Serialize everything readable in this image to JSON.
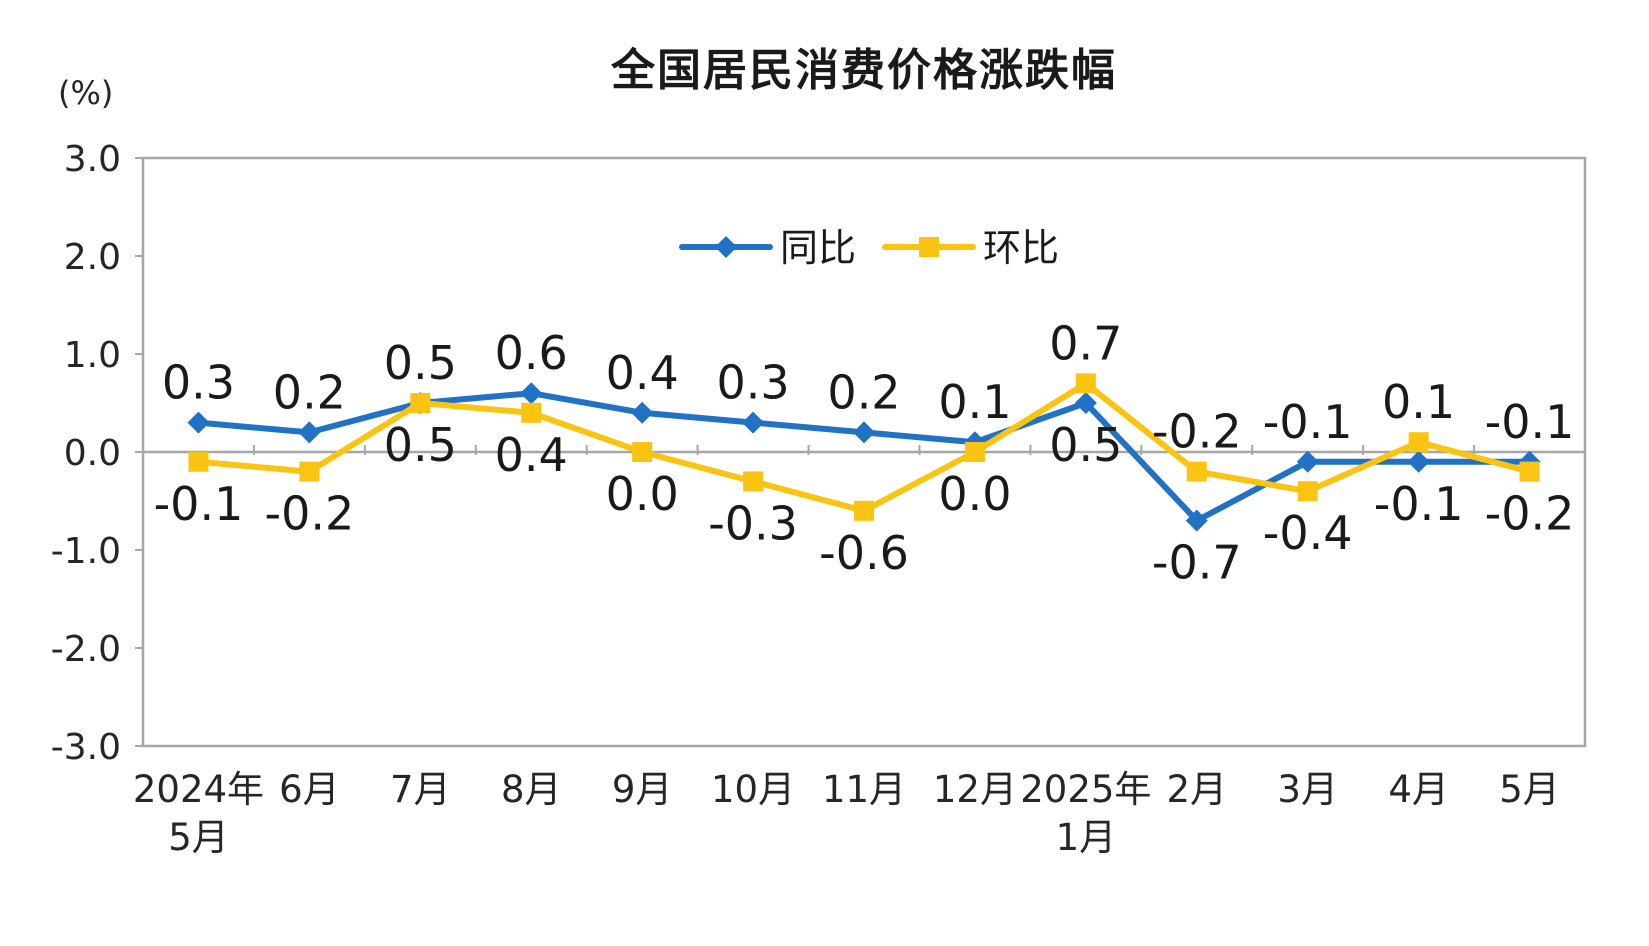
{
  "chart_data": {
    "type": "line",
    "title": "全国居民消费价格涨跌幅",
    "unit_label": "(%)",
    "categories": [
      [
        "2024年",
        "5月"
      ],
      [
        "6月"
      ],
      [
        "7月"
      ],
      [
        "8月"
      ],
      [
        "9月"
      ],
      [
        "10月"
      ],
      [
        "11月"
      ],
      [
        "12月"
      ],
      [
        "2025年",
        "1月"
      ],
      [
        "2月"
      ],
      [
        "3月"
      ],
      [
        "4月"
      ],
      [
        "5月"
      ]
    ],
    "series": [
      {
        "name": "同比",
        "color": "#2171C4",
        "marker": "diamond",
        "values": [
          0.3,
          0.2,
          0.5,
          0.6,
          0.4,
          0.3,
          0.2,
          0.1,
          0.5,
          -0.7,
          -0.1,
          -0.1,
          -0.1
        ]
      },
      {
        "name": "环比",
        "color": "#FBC412",
        "marker": "square",
        "values": [
          -0.1,
          -0.2,
          0.5,
          0.4,
          0.0,
          -0.3,
          -0.6,
          0.0,
          0.7,
          -0.2,
          -0.4,
          0.1,
          -0.2
        ]
      }
    ],
    "ylim": [
      -3.0,
      3.0
    ],
    "ytick_labels": [
      "3.0",
      "2.0",
      "1.0",
      "0.0",
      "-1.0",
      "-2.0",
      "-3.0"
    ],
    "data_labels": true,
    "grid": false,
    "legend": {
      "position": "top-center-inside",
      "entries": [
        "同比",
        "环比"
      ]
    },
    "axis_color": "#A6A6A6",
    "label_color": "#1A1A1A",
    "tick_text_color": "#262626"
  }
}
